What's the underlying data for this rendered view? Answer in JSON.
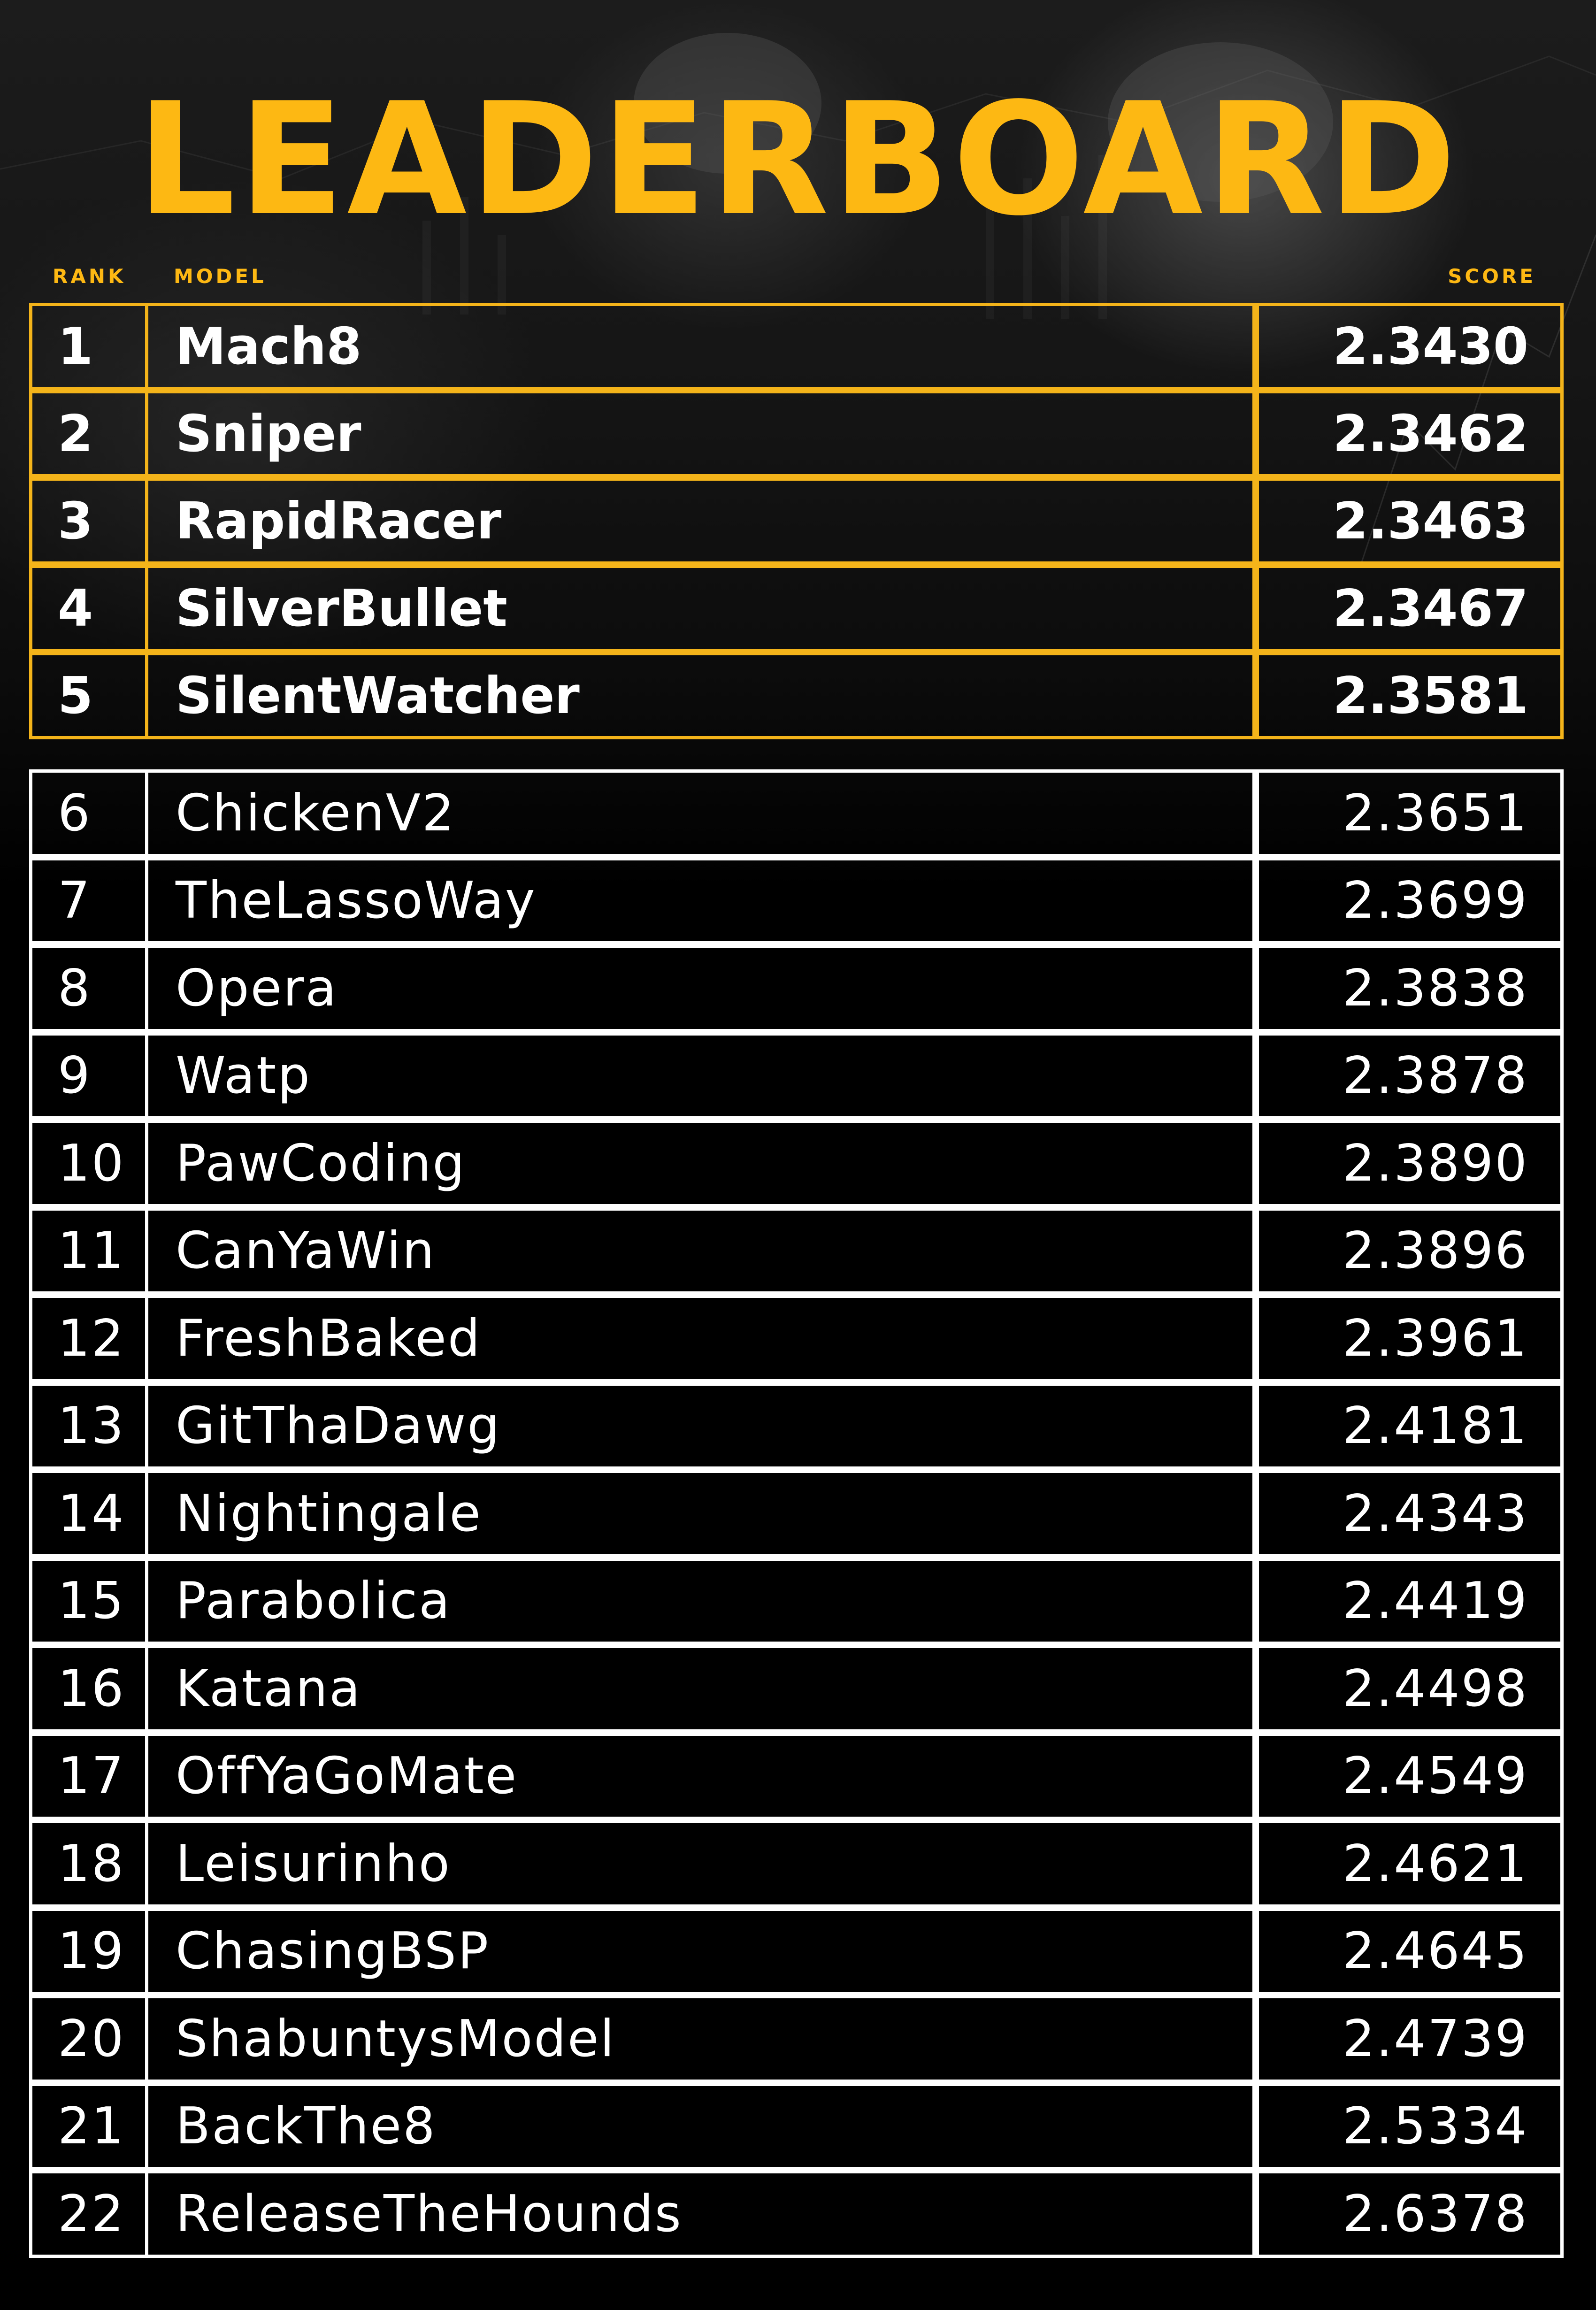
{
  "title": "LEADERBOARD",
  "columns": {
    "rank": "RANK",
    "model": "MODEL",
    "score": "SCORE"
  },
  "top_rows": [
    {
      "rank": "1",
      "model": "Mach8",
      "score": "2.3430"
    },
    {
      "rank": "2",
      "model": "Sniper",
      "score": "2.3462"
    },
    {
      "rank": "3",
      "model": "RapidRacer",
      "score": "2.3463"
    },
    {
      "rank": "4",
      "model": "SilverBullet",
      "score": "2.3467"
    },
    {
      "rank": "5",
      "model": "SilentWatcher",
      "score": "2.3581"
    }
  ],
  "rows": [
    {
      "rank": "6",
      "model": "ChickenV2",
      "score": "2.3651"
    },
    {
      "rank": "7",
      "model": "TheLassoWay",
      "score": "2.3699"
    },
    {
      "rank": "8",
      "model": "Opera",
      "score": "2.3838"
    },
    {
      "rank": "9",
      "model": "Watp",
      "score": "2.3878"
    },
    {
      "rank": "10",
      "model": "PawCoding",
      "score": "2.3890"
    },
    {
      "rank": "11",
      "model": "CanYaWin",
      "score": "2.3896"
    },
    {
      "rank": "12",
      "model": "FreshBaked",
      "score": "2.3961"
    },
    {
      "rank": "13",
      "model": "GitThaDawg",
      "score": "2.4181"
    },
    {
      "rank": "14",
      "model": "Nightingale",
      "score": "2.4343"
    },
    {
      "rank": "15",
      "model": "Parabolica",
      "score": "2.4419"
    },
    {
      "rank": "16",
      "model": "Katana",
      "score": "2.4498"
    },
    {
      "rank": "17",
      "model": "OffYaGoMate",
      "score": "2.4549"
    },
    {
      "rank": "18",
      "model": "Leisurinho",
      "score": "2.4621"
    },
    {
      "rank": "19",
      "model": "ChasingBSP",
      "score": "2.4645"
    },
    {
      "rank": "20",
      "model": "ShabuntysModel",
      "score": "2.4739"
    },
    {
      "rank": "21",
      "model": "BackThe8",
      "score": "2.5334"
    },
    {
      "rank": "22",
      "model": "ReleaseTheHounds",
      "score": "2.6378"
    }
  ],
  "colors": {
    "accent": "#fdb813",
    "top_border": "#f4b41a",
    "rest_border": "#ffffff",
    "background": "#000000",
    "text": "#ffffff"
  }
}
